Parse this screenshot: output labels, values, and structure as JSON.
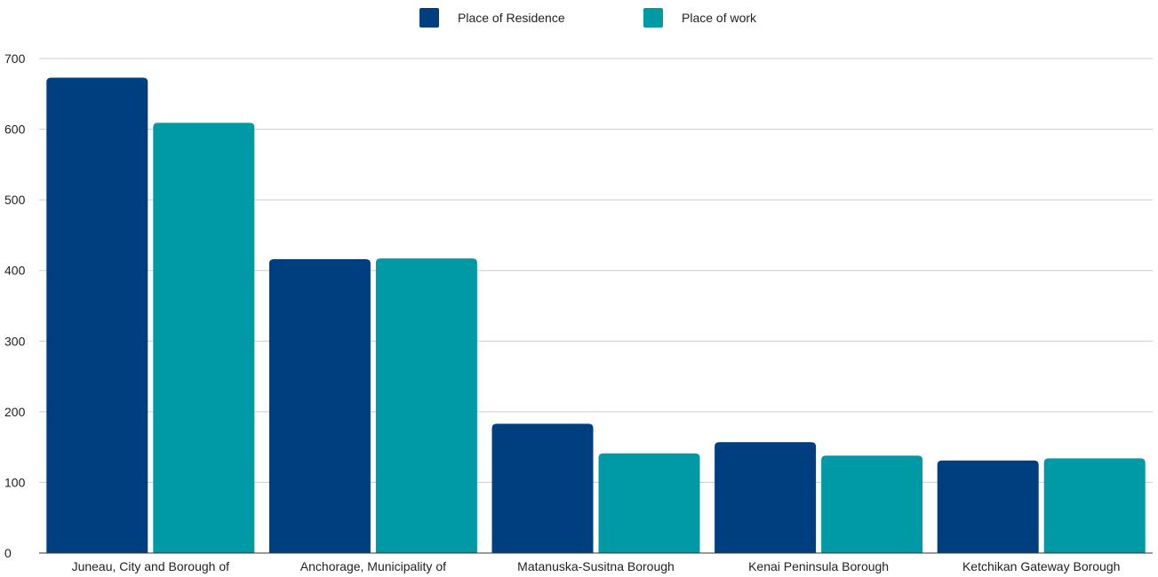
{
  "chart_data": {
    "type": "bar",
    "title": "",
    "xlabel": "",
    "ylabel": "",
    "categories": [
      "Juneau, City and Borough of",
      "Anchorage, Municipality of",
      "Matanuska-Susitna Borough",
      "Kenai Peninsula Borough",
      "Ketchikan Gateway Borough"
    ],
    "series": [
      {
        "name": "Place of Residence",
        "color": "#003f7f",
        "values": [
          673,
          416,
          183,
          157,
          131
        ]
      },
      {
        "name": "Place of work",
        "color": "#009aa6",
        "values": [
          609,
          417,
          141,
          138,
          134
        ]
      }
    ],
    "ylim": [
      0,
      700
    ],
    "yticks": [
      0,
      100,
      200,
      300,
      400,
      500,
      600,
      700
    ],
    "grid": true,
    "legend_position": "top-center"
  }
}
